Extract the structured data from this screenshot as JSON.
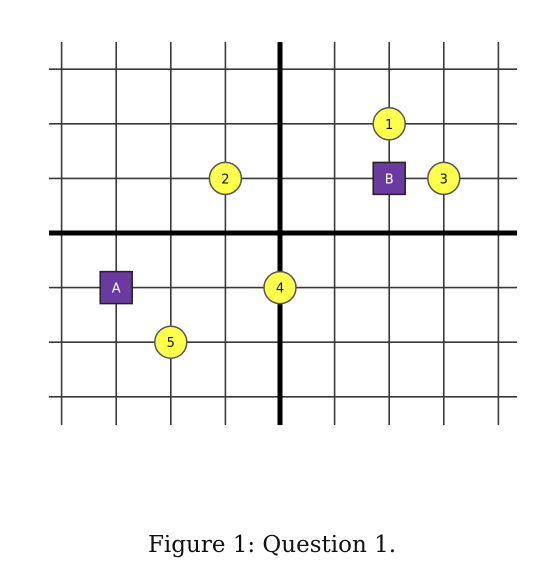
{
  "caption": "Figure 1: Question 1.",
  "colors": {
    "grid": "#3a3a3a",
    "axis": "#000000",
    "circle_fill": "#ffff4d",
    "circle_stroke": "#555555",
    "square_fill": "#6a3aa1",
    "square_stroke": "#222222",
    "square_text": "#ffffff",
    "circle_text": "#111111"
  },
  "grid": {
    "x_min": -4,
    "x_max": 4,
    "y_min": -3,
    "y_max": 3
  },
  "points": [
    {
      "label": "1",
      "shape": "circle",
      "x": 2,
      "y": 2
    },
    {
      "label": "2",
      "shape": "circle",
      "x": -1,
      "y": 1
    },
    {
      "label": "3",
      "shape": "circle",
      "x": 3,
      "y": 1
    },
    {
      "label": "4",
      "shape": "circle",
      "x": 0,
      "y": -1
    },
    {
      "label": "5",
      "shape": "circle",
      "x": -2,
      "y": -2
    },
    {
      "label": "A",
      "shape": "square",
      "x": -3,
      "y": -1
    },
    {
      "label": "B",
      "shape": "square",
      "x": 2,
      "y": 1
    }
  ]
}
